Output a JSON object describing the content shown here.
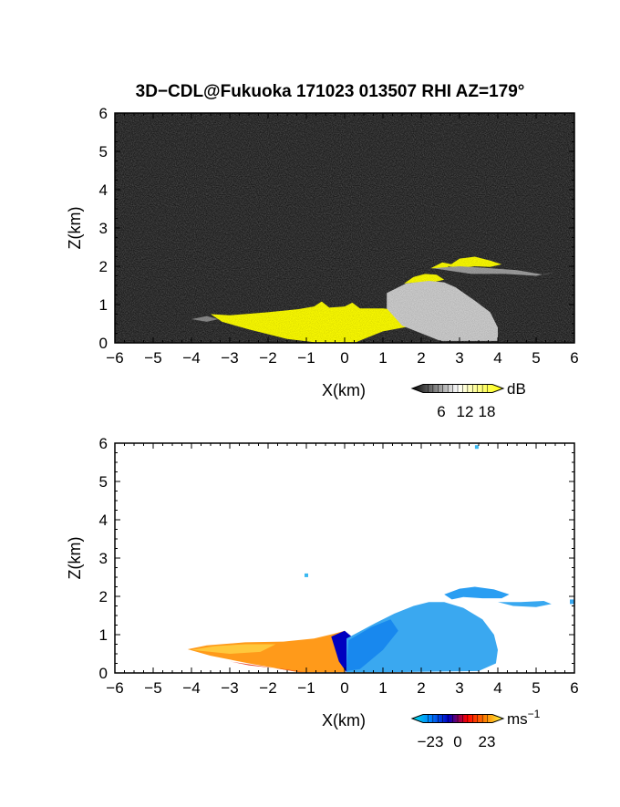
{
  "title": "3D−CDL@Fukuoka 171023 013507 RHI AZ=179°",
  "chart_data": [
    {
      "type": "heatmap",
      "name": "reflectivity",
      "xlabel": "X(km)",
      "ylabel": "Z(km)",
      "xlim": [
        -6,
        6
      ],
      "ylim": [
        0,
        6
      ],
      "x_ticks": [
        "−6",
        "−5",
        "−4",
        "−3",
        "−2",
        "−1",
        "0",
        "1",
        "2",
        "3",
        "4",
        "5",
        "6"
      ],
      "y_ticks": [
        "0",
        "1",
        "2",
        "3",
        "4",
        "5",
        "6"
      ],
      "colorbar": {
        "unit": "dB",
        "tick_labels": [
          "6",
          "12",
          "18"
        ],
        "colors": [
          "#000000",
          "#ffffff",
          "#ffff00"
        ]
      },
      "background": "noise",
      "echo_regions": [
        {
          "fill": "#ffff00",
          "outline": [
            [
              -3.5,
              0.75
            ],
            [
              -3.0,
              0.72
            ],
            [
              -2.0,
              0.8
            ],
            [
              -1.2,
              0.88
            ],
            [
              -0.8,
              0.95
            ],
            [
              -0.6,
              1.08
            ],
            [
              -0.4,
              0.92
            ],
            [
              0.0,
              0.95
            ],
            [
              0.2,
              1.05
            ],
            [
              0.4,
              0.9
            ],
            [
              1.0,
              0.9
            ],
            [
              1.5,
              0.85
            ],
            [
              2.0,
              0.88
            ],
            [
              2.2,
              0.6
            ],
            [
              1.8,
              0.45
            ],
            [
              1.0,
              0.3
            ],
            [
              0.5,
              0.1
            ],
            [
              0.3,
              0.02
            ],
            [
              -0.8,
              0.02
            ],
            [
              -1.5,
              0.1
            ],
            [
              -2.5,
              0.35
            ],
            [
              -3.2,
              0.55
            ]
          ]
        },
        {
          "fill": "#ffff00",
          "outline": [
            [
              1.55,
              1.55
            ],
            [
              1.8,
              1.72
            ],
            [
              2.1,
              1.8
            ],
            [
              2.4,
              1.78
            ],
            [
              2.6,
              1.65
            ],
            [
              2.3,
              1.58
            ],
            [
              1.9,
              1.58
            ]
          ]
        },
        {
          "fill": "#ffff00",
          "outline": [
            [
              2.7,
              2.0
            ],
            [
              3.0,
              2.2
            ],
            [
              3.4,
              2.25
            ],
            [
              3.8,
              2.15
            ],
            [
              4.1,
              2.05
            ],
            [
              3.8,
              1.98
            ],
            [
              3.4,
              2.0
            ],
            [
              3.0,
              1.95
            ]
          ]
        },
        {
          "fill": "#ffff00",
          "outline": [
            [
              2.25,
              1.95
            ],
            [
              2.55,
              2.1
            ],
            [
              2.8,
              2.05
            ],
            [
              2.6,
              1.92
            ]
          ]
        },
        {
          "fill": "#d0d0d0",
          "outline": [
            [
              1.1,
              1.3
            ],
            [
              1.6,
              1.55
            ],
            [
              2.2,
              1.62
            ],
            [
              2.6,
              1.58
            ],
            [
              2.9,
              1.45
            ],
            [
              3.4,
              1.1
            ],
            [
              3.8,
              0.8
            ],
            [
              4.0,
              0.4
            ],
            [
              4.0,
              0.05
            ],
            [
              2.5,
              0.05
            ],
            [
              1.5,
              0.45
            ],
            [
              1.1,
              0.9
            ]
          ]
        },
        {
          "fill": "#a0a0a0",
          "outline": [
            [
              2.3,
              1.95
            ],
            [
              3.0,
              2.0
            ],
            [
              3.8,
              1.95
            ],
            [
              4.5,
              1.9
            ],
            [
              5.2,
              1.78
            ],
            [
              5.5,
              1.85
            ],
            [
              5.0,
              1.75
            ],
            [
              4.2,
              1.8
            ],
            [
              3.3,
              1.8
            ]
          ]
        },
        {
          "fill": "#8c8c8c",
          "outline": [
            [
              -4.0,
              0.62
            ],
            [
              -3.6,
              0.7
            ],
            [
              -3.3,
              0.62
            ],
            [
              -3.6,
              0.55
            ]
          ]
        }
      ]
    },
    {
      "type": "heatmap",
      "name": "doppler-velocity",
      "xlabel": "X(km)",
      "ylabel": "Z(km)",
      "xlim": [
        -6,
        6
      ],
      "ylim": [
        0,
        6
      ],
      "x_ticks": [
        "−6",
        "−5",
        "−4",
        "−3",
        "−2",
        "−1",
        "0",
        "1",
        "2",
        "3",
        "4",
        "5",
        "6"
      ],
      "y_ticks": [
        "0",
        "1",
        "2",
        "3",
        "4",
        "5",
        "6"
      ],
      "colorbar": {
        "unit": "ms",
        "unit_exponent": "−1",
        "tick_labels": [
          "−23",
          "0",
          "23"
        ],
        "colors": [
          "#00e5e5",
          "#0080ff",
          "#0000c0",
          "#ff0000",
          "#ff8000",
          "#ffff40"
        ]
      },
      "echo_regions": [
        {
          "fill": "#ff9a1a",
          "outline": [
            [
              -4.1,
              0.62
            ],
            [
              -3.6,
              0.72
            ],
            [
              -2.6,
              0.8
            ],
            [
              -1.6,
              0.82
            ],
            [
              -0.8,
              0.9
            ],
            [
              -0.3,
              1.02
            ],
            [
              0.0,
              1.1
            ],
            [
              0.02,
              0.3
            ],
            [
              0.0,
              0.02
            ],
            [
              -1.2,
              0.02
            ],
            [
              -2.5,
              0.25
            ],
            [
              -3.5,
              0.45
            ]
          ]
        },
        {
          "fill": "#ffc83c",
          "outline": [
            [
              -4.0,
              0.6
            ],
            [
              -3.4,
              0.7
            ],
            [
              -2.6,
              0.75
            ],
            [
              -1.8,
              0.75
            ],
            [
              -2.2,
              0.55
            ],
            [
              -3.0,
              0.5
            ]
          ]
        },
        {
          "fill": "#e83a1a",
          "outline": [
            [
              -3.0,
              0.3
            ],
            [
              -2.2,
              0.18
            ],
            [
              -1.4,
              0.06
            ],
            [
              -1.0,
              0.02
            ],
            [
              -1.6,
              0.1
            ],
            [
              -2.5,
              0.2
            ]
          ]
        },
        {
          "fill": "#0000c0",
          "outline": [
            [
              -0.35,
              0.95
            ],
            [
              0.0,
              1.1
            ],
            [
              0.25,
              0.9
            ],
            [
              0.3,
              0.5
            ],
            [
              0.05,
              0.02
            ],
            [
              -0.15,
              0.3
            ]
          ]
        },
        {
          "fill": "#3aa8f0",
          "outline": [
            [
              0.05,
              0.9
            ],
            [
              0.8,
              1.3
            ],
            [
              1.3,
              1.55
            ],
            [
              1.8,
              1.75
            ],
            [
              2.2,
              1.85
            ],
            [
              2.6,
              1.85
            ],
            [
              3.1,
              1.7
            ],
            [
              3.6,
              1.4
            ],
            [
              3.9,
              1.0
            ],
            [
              4.0,
              0.6
            ],
            [
              3.95,
              0.25
            ],
            [
              3.5,
              0.05
            ],
            [
              1.0,
              0.02
            ],
            [
              0.05,
              0.02
            ]
          ]
        },
        {
          "fill": "#1888ee",
          "outline": [
            [
              0.1,
              0.85
            ],
            [
              0.7,
              1.2
            ],
            [
              1.2,
              1.4
            ],
            [
              1.4,
              1.1
            ],
            [
              1.0,
              0.6
            ],
            [
              0.4,
              0.1
            ],
            [
              0.05,
              0.05
            ]
          ]
        },
        {
          "fill": "#2a9ef2",
          "outline": [
            [
              2.6,
              2.05
            ],
            [
              3.0,
              2.2
            ],
            [
              3.4,
              2.25
            ],
            [
              3.9,
              2.18
            ],
            [
              4.3,
              2.05
            ],
            [
              4.1,
              1.95
            ],
            [
              3.6,
              1.95
            ],
            [
              3.1,
              1.98
            ],
            [
              2.8,
              1.92
            ]
          ]
        },
        {
          "fill": "#38a8f0",
          "outline": [
            [
              4.0,
              1.85
            ],
            [
              4.6,
              1.85
            ],
            [
              5.2,
              1.88
            ],
            [
              5.4,
              1.8
            ],
            [
              5.0,
              1.72
            ],
            [
              4.4,
              1.75
            ]
          ]
        },
        {
          "fill": "#38a8f0",
          "outline": [
            [
              5.88,
              1.92
            ],
            [
              6.0,
              1.92
            ],
            [
              6.0,
              1.8
            ],
            [
              5.88,
              1.8
            ]
          ]
        }
      ],
      "echo_points": [
        {
          "x": 3.45,
          "z": 5.9,
          "color": "#3ab8f0"
        },
        {
          "x": -1.0,
          "z": 2.55,
          "color": "#3ab8f0"
        }
      ]
    }
  ]
}
